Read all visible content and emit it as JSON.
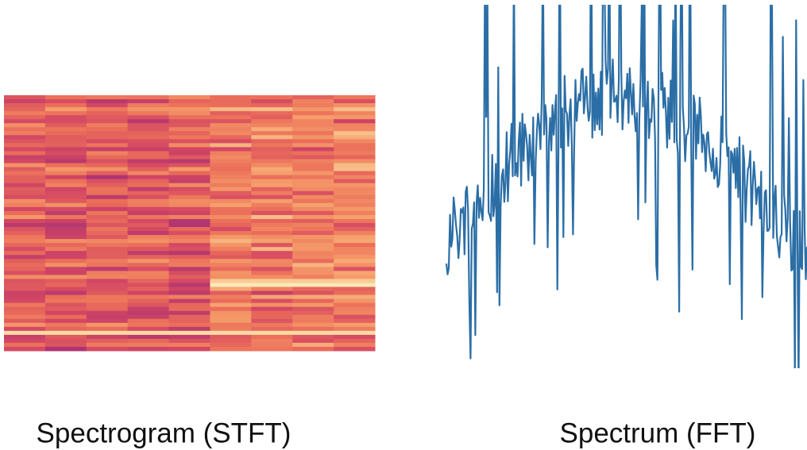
{
  "panels": [
    {
      "caption": "Spectrogram (STFT)"
    },
    {
      "caption": "Spectrum (FFT)"
    }
  ]
}
